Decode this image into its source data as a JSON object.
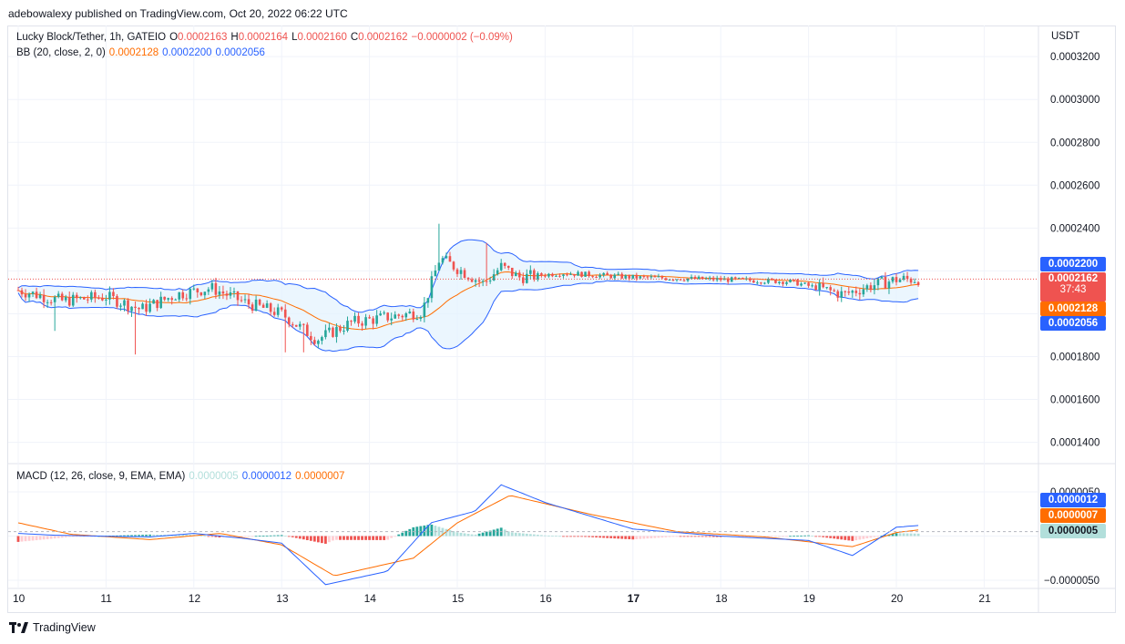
{
  "header": {
    "published": "adebowalexy published on TradingView.com, Oct 20, 2022 06:22 UTC"
  },
  "main_legend": {
    "symbol": "Lucky Block/Tether, 1h, GATEIO",
    "o_label": "O",
    "o_value": "0.0002163",
    "h_label": "H",
    "h_value": "0.0002164",
    "l_label": "L",
    "l_value": "0.0002160",
    "c_label": "C",
    "c_value": "0.0002162",
    "change": "−0.0000002 (−0.09%)"
  },
  "bb_legend": {
    "label": "BB (20, close, 2, 0)",
    "basis": "0.0002128",
    "upper": "0.0002200",
    "lower": "0.0002056"
  },
  "macd_legend": {
    "label": "MACD (12, 26, close, 9, EMA, EMA)",
    "hist": "0.0000005",
    "macd": "0.0000012",
    "signal": "0.0000007"
  },
  "price_axis": {
    "currency": "USDT",
    "ticks": [
      "0.0003200",
      "0.0003000",
      "0.0002800",
      "0.0002600",
      "0.0002400",
      "0.0001800",
      "0.0001600",
      "0.0001400"
    ],
    "upper_tag": "0.0002200",
    "last_tag": "0.0002162",
    "countdown": "37:43",
    "basis_tag": "0.0002128",
    "lower_tag": "0.0002056"
  },
  "macd_axis": {
    "ticks": [
      "0.0000050",
      "−0.0000050"
    ],
    "macd_tag": "0.0000012",
    "signal_tag": "0.0000007",
    "hist_tag": "0.0000005"
  },
  "time_axis": {
    "labels": [
      "10",
      "11",
      "12",
      "13",
      "14",
      "15",
      "16",
      "17",
      "18",
      "19",
      "20",
      "21"
    ]
  },
  "footer": {
    "brand": "TradingView"
  },
  "colors": {
    "up": "#26a69a",
    "down": "#ef5350",
    "bb_band": "#2962ff",
    "bb_basis": "#ff6d00",
    "bb_fill": "#e3f2fd",
    "macd": "#2962ff",
    "signal": "#ff6d00",
    "hist_up_strong": "#26a69a",
    "hist_up_weak": "#b2dfdb",
    "hist_down_strong": "#ef5350",
    "hist_down_weak": "#ffcdd2"
  },
  "chart_data": [
    {
      "type": "candlestick",
      "title": "Lucky Block/Tether, 1h, GATEIO",
      "y_unit": "USDT",
      "ylim": [
        0.00013,
        0.00033
      ],
      "x_labels": [
        "10",
        "11",
        "12",
        "13",
        "14",
        "15",
        "16",
        "17",
        "18",
        "19",
        "20",
        "21"
      ],
      "last_ohlc": {
        "open": 0.0002163,
        "high": 0.0002164,
        "low": 0.000216,
        "close": 0.0002162
      },
      "last_price": 0.0002162,
      "indicators": {
        "bollinger": {
          "period": 20,
          "source": "close",
          "mult": 2,
          "basis": 0.0002128,
          "upper": 0.00022,
          "lower": 0.0002056
        }
      },
      "close_path": [
        {
          "day": 10.0,
          "close": 0.000211
        },
        {
          "day": 10.5,
          "close": 0.000206
        },
        {
          "day": 11.0,
          "close": 0.000208
        },
        {
          "day": 11.4,
          "close": 0.000202
        },
        {
          "day": 11.8,
          "close": 0.000209
        },
        {
          "day": 12.2,
          "close": 0.000212
        },
        {
          "day": 12.6,
          "close": 0.000205
        },
        {
          "day": 13.0,
          "close": 0.0002
        },
        {
          "day": 13.4,
          "close": 0.000188
        },
        {
          "day": 13.8,
          "close": 0.000196
        },
        {
          "day": 14.3,
          "close": 0.000199
        },
        {
          "day": 14.6,
          "close": 0.000201
        },
        {
          "day": 14.8,
          "close": 0.000226
        },
        {
          "day": 15.3,
          "close": 0.000214
        },
        {
          "day": 15.5,
          "close": 0.000222
        },
        {
          "day": 15.7,
          "close": 0.000217
        },
        {
          "day": 16.2,
          "close": 0.000219
        },
        {
          "day": 17.0,
          "close": 0.000217
        },
        {
          "day": 18.0,
          "close": 0.000216
        },
        {
          "day": 18.8,
          "close": 0.000215
        },
        {
          "day": 19.4,
          "close": 0.000209
        },
        {
          "day": 19.7,
          "close": 0.000213
        },
        {
          "day": 20.0,
          "close": 0.000216
        },
        {
          "day": 20.25,
          "close": 0.0002162
        }
      ]
    },
    {
      "type": "line",
      "title": "MACD (12, 26, close, 9, EMA, EMA)",
      "ylim": [
        -7e-06,
        7e-06
      ],
      "last": {
        "histogram": 5e-07,
        "macd": 1.2e-06,
        "signal": 7e-07
      },
      "macd_path": [
        {
          "day": 10.0,
          "value": 3e-07
        },
        {
          "day": 10.4,
          "value": 1e-07
        },
        {
          "day": 10.9,
          "value": 0.0
        },
        {
          "day": 11.5,
          "value": -1e-07
        },
        {
          "day": 12.0,
          "value": 3e-07
        },
        {
          "day": 12.6,
          "value": -3e-07
        },
        {
          "day": 13.0,
          "value": -8e-07
        },
        {
          "day": 13.5,
          "value": -5.5e-06
        },
        {
          "day": 14.2,
          "value": -4e-06
        },
        {
          "day": 14.7,
          "value": 1.5e-06
        },
        {
          "day": 15.2,
          "value": 2.8e-06
        },
        {
          "day": 15.5,
          "value": 5.8e-06
        },
        {
          "day": 16.0,
          "value": 3.8e-06
        },
        {
          "day": 17.0,
          "value": 8e-07
        },
        {
          "day": 18.0,
          "value": 0.0
        },
        {
          "day": 19.0,
          "value": -5e-07
        },
        {
          "day": 19.5,
          "value": -2.2e-06
        },
        {
          "day": 20.0,
          "value": 1e-06
        },
        {
          "day": 20.25,
          "value": 1.2e-06
        }
      ],
      "signal_path": [
        {
          "day": 10.0,
          "value": 1.5e-06
        },
        {
          "day": 10.6,
          "value": 2e-07
        },
        {
          "day": 11.5,
          "value": -4e-07
        },
        {
          "day": 12.3,
          "value": 3e-07
        },
        {
          "day": 13.0,
          "value": -1e-06
        },
        {
          "day": 13.6,
          "value": -4.5e-06
        },
        {
          "day": 14.5,
          "value": -2.5e-06
        },
        {
          "day": 15.0,
          "value": 1.5e-06
        },
        {
          "day": 15.6,
          "value": 4.6e-06
        },
        {
          "day": 16.5,
          "value": 2.5e-06
        },
        {
          "day": 17.5,
          "value": 5e-07
        },
        {
          "day": 18.5,
          "value": -1e-07
        },
        {
          "day": 19.5,
          "value": -1.2e-06
        },
        {
          "day": 20.0,
          "value": 4e-07
        },
        {
          "day": 20.25,
          "value": 7e-07
        }
      ]
    }
  ]
}
